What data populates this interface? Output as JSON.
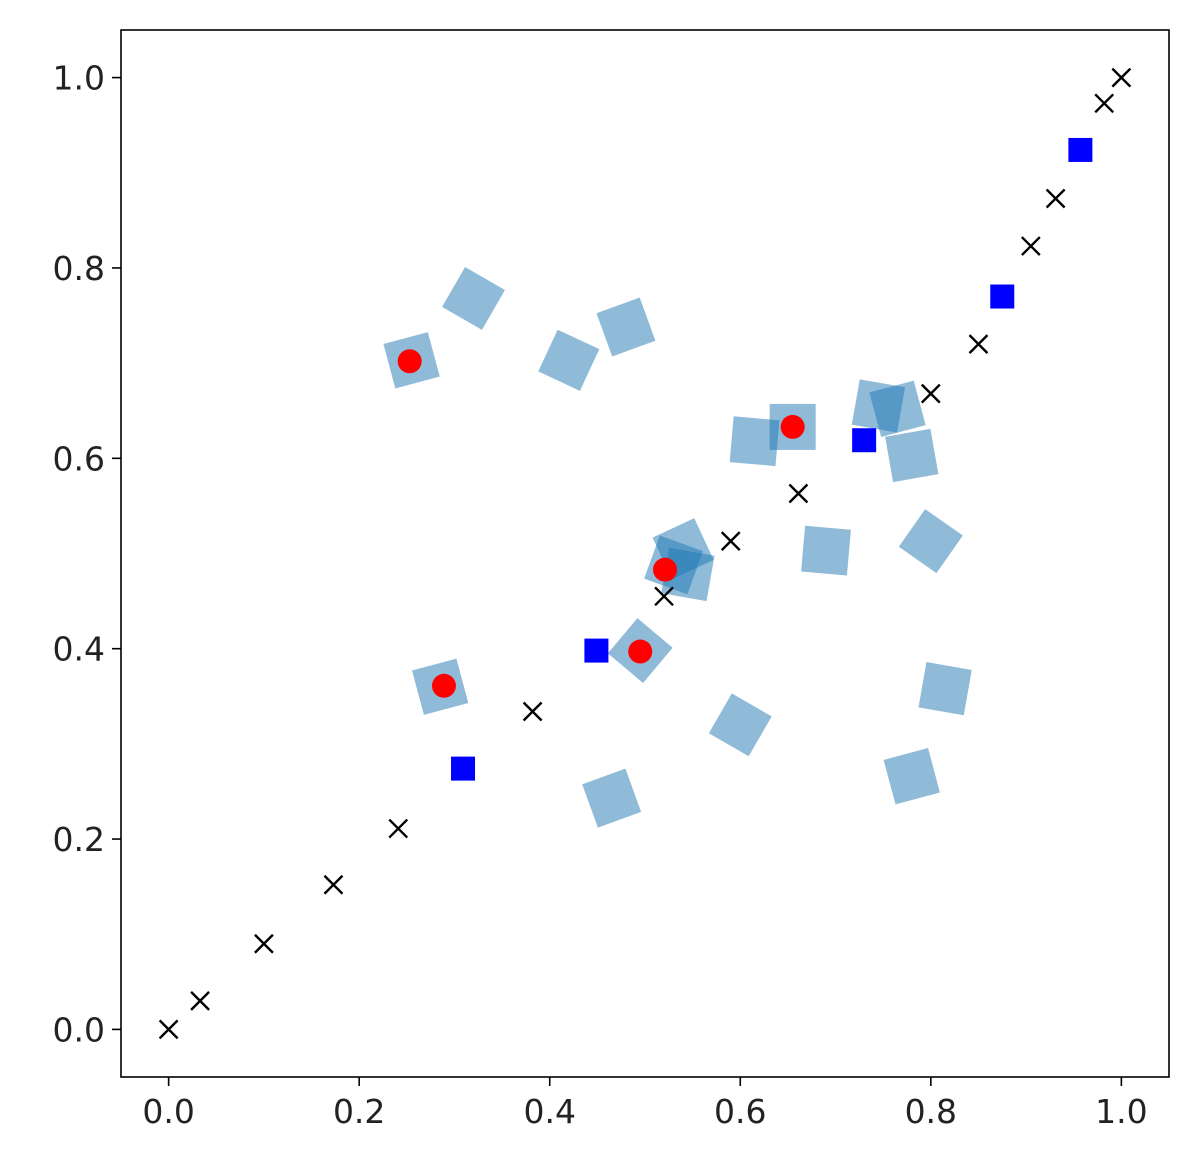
{
  "chart_data": {
    "type": "scatter",
    "title": "",
    "xlabel": "",
    "ylabel": "",
    "xlim": [
      -0.05,
      1.05
    ],
    "ylim": [
      -0.05,
      1.05
    ],
    "grid": false,
    "legend": "none",
    "xticks": [
      0.0,
      0.2,
      0.4,
      0.6,
      0.8,
      1.0
    ],
    "xtick_labels": [
      "0.0",
      "0.2",
      "0.4",
      "0.6",
      "0.8",
      "1.0"
    ],
    "yticks": [
      0.0,
      0.2,
      0.4,
      0.6,
      0.8,
      1.0
    ],
    "ytick_labels": [
      "0.0",
      "0.2",
      "0.4",
      "0.6",
      "0.8",
      "1.0"
    ],
    "series": [
      {
        "marker": "rotated-square",
        "color": "#1f77b4",
        "opacity": 0.5,
        "points": [
          {
            "x": 0.255,
            "y": 0.703,
            "angle": -15
          },
          {
            "x": 0.32,
            "y": 0.768,
            "angle": 30
          },
          {
            "x": 0.42,
            "y": 0.703,
            "angle": 25
          },
          {
            "x": 0.48,
            "y": 0.738,
            "angle": -20
          },
          {
            "x": 0.615,
            "y": 0.618,
            "angle": 5
          },
          {
            "x": 0.655,
            "y": 0.633,
            "angle": 0
          },
          {
            "x": 0.745,
            "y": 0.655,
            "angle": 10
          },
          {
            "x": 0.765,
            "y": 0.652,
            "angle": -15
          },
          {
            "x": 0.78,
            "y": 0.603,
            "angle": -10
          },
          {
            "x": 0.8,
            "y": 0.513,
            "angle": 35
          },
          {
            "x": 0.69,
            "y": 0.503,
            "angle": 5
          },
          {
            "x": 0.53,
            "y": 0.488,
            "angle": 20
          },
          {
            "x": 0.54,
            "y": 0.505,
            "angle": -25
          },
          {
            "x": 0.545,
            "y": 0.478,
            "angle": 10
          },
          {
            "x": 0.495,
            "y": 0.398,
            "angle": 40
          },
          {
            "x": 0.285,
            "y": 0.36,
            "angle": -15
          },
          {
            "x": 0.6,
            "y": 0.32,
            "angle": 30
          },
          {
            "x": 0.465,
            "y": 0.243,
            "angle": -20
          },
          {
            "x": 0.815,
            "y": 0.358,
            "angle": 10
          },
          {
            "x": 0.78,
            "y": 0.266,
            "angle": -15
          }
        ]
      },
      {
        "marker": "x",
        "color": "#000000",
        "points": [
          {
            "x": 0.0,
            "y": 0.0
          },
          {
            "x": 0.033,
            "y": 0.03
          },
          {
            "x": 0.1,
            "y": 0.09
          },
          {
            "x": 0.173,
            "y": 0.152
          },
          {
            "x": 0.241,
            "y": 0.211
          },
          {
            "x": 0.382,
            "y": 0.334
          },
          {
            "x": 0.52,
            "y": 0.455
          },
          {
            "x": 0.59,
            "y": 0.513
          },
          {
            "x": 0.661,
            "y": 0.563
          },
          {
            "x": 0.8,
            "y": 0.668
          },
          {
            "x": 0.85,
            "y": 0.72
          },
          {
            "x": 0.905,
            "y": 0.823
          },
          {
            "x": 0.931,
            "y": 0.873
          },
          {
            "x": 0.982,
            "y": 0.973
          },
          {
            "x": 1.0,
            "y": 1.0
          }
        ]
      },
      {
        "marker": "square",
        "color": "#0000ff",
        "points": [
          {
            "x": 0.309,
            "y": 0.274
          },
          {
            "x": 0.449,
            "y": 0.398
          },
          {
            "x": 0.73,
            "y": 0.619
          },
          {
            "x": 0.875,
            "y": 0.77
          },
          {
            "x": 0.957,
            "y": 0.924
          }
        ]
      },
      {
        "marker": "circle",
        "color": "#ff0000",
        "points": [
          {
            "x": 0.253,
            "y": 0.702
          },
          {
            "x": 0.289,
            "y": 0.361
          },
          {
            "x": 0.495,
            "y": 0.397
          },
          {
            "x": 0.521,
            "y": 0.483
          },
          {
            "x": 0.655,
            "y": 0.633
          }
        ]
      }
    ]
  }
}
